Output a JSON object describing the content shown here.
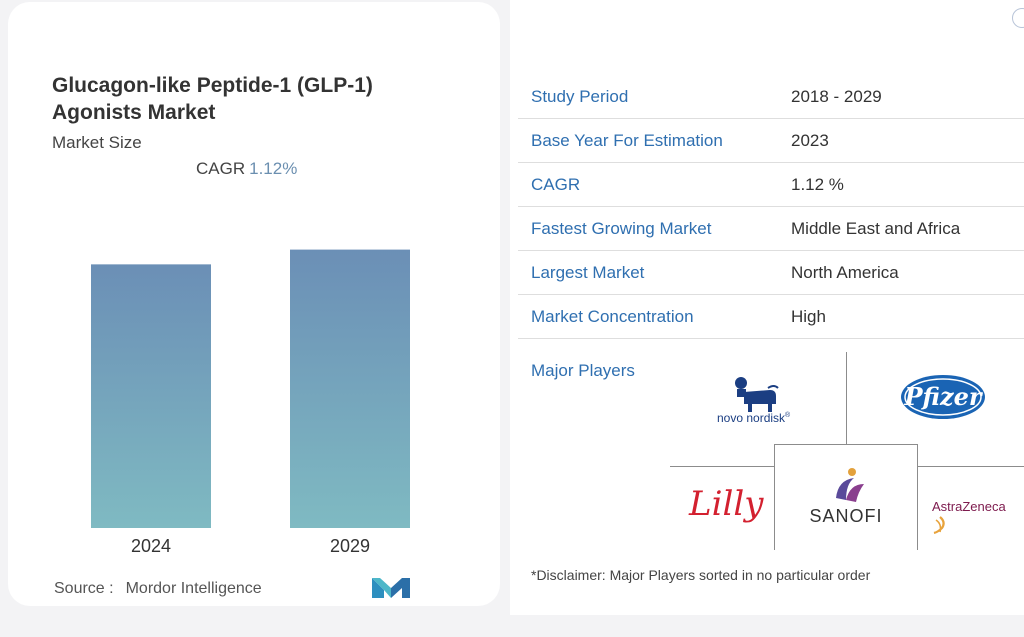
{
  "chart_data": {
    "type": "bar",
    "title": "Glucagon-like Peptide-1 (GLP-1) Agonists Market",
    "subtitle": "Market Size",
    "cagr_label": "CAGR",
    "cagr_value": "1.12%",
    "categories": [
      "2024",
      "2029"
    ],
    "values": [
      1.0,
      1.056
    ],
    "ylim": [
      0,
      1.1
    ],
    "grid": false,
    "gradient_colors": [
      "#6b8fb6",
      "#7fbac2"
    ]
  },
  "source": {
    "label": "Source :",
    "name": "Mordor Intelligence"
  },
  "stats": [
    {
      "key": "Study Period",
      "value": "2018 - 2029"
    },
    {
      "key": "Base Year For Estimation",
      "value": "2023"
    },
    {
      "key": "CAGR",
      "value": "1.12 %"
    },
    {
      "key": "Fastest Growing Market",
      "value": "Middle East and Africa"
    },
    {
      "key": "Largest Market",
      "value": "North America"
    },
    {
      "key": "Market Concentration",
      "value": "High"
    }
  ],
  "players": {
    "label": "Major Players",
    "logos": {
      "novo": "novo nordisk",
      "novo_mark": "®",
      "pfizer": "Pfizer",
      "lilly": "Lilly",
      "sanofi": "SANOFI",
      "astrazeneca": "AstraZeneca"
    },
    "disclaimer": "*Disclaimer: Major Players sorted in no particular order"
  },
  "colors": {
    "accent": "#2f6fb0",
    "pfizer": "#1a64b4",
    "lilly": "#d3202f",
    "astrazeneca": "#7d1a4d"
  }
}
